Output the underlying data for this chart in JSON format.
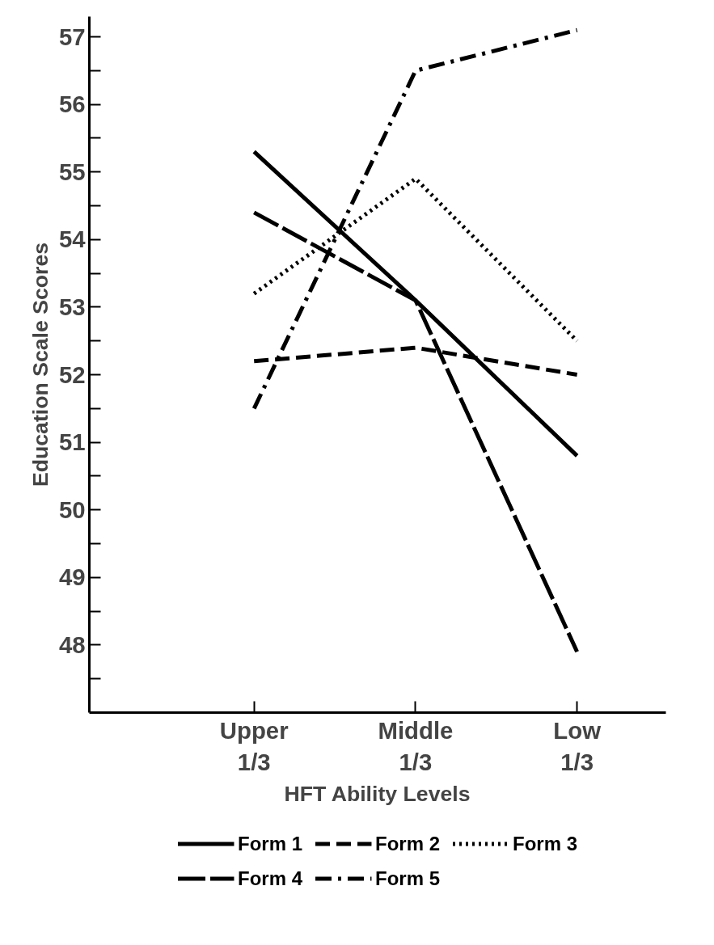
{
  "chart_data": {
    "type": "line",
    "xlabel": "HFT Ability Levels",
    "ylabel": "Education Scale Scores",
    "categories": [
      "Upper\n1/3",
      "Middle\n1/3",
      "Low\n1/3"
    ],
    "series": [
      {
        "name": "Form 1",
        "color": "#000000",
        "line_style": "solid",
        "values": [
          55.3,
          53.1,
          50.8
        ]
      },
      {
        "name": "Form 2",
        "color": "#000000",
        "line_style": "dashed",
        "values": [
          52.2,
          52.4,
          52.0
        ]
      },
      {
        "name": "Form 3",
        "color": "#000000",
        "line_style": "dotted",
        "values": [
          53.2,
          54.9,
          52.5
        ]
      },
      {
        "name": "Form 4",
        "color": "#000000",
        "line_style": "longdash",
        "values": [
          54.4,
          53.1,
          47.9
        ]
      },
      {
        "name": "Form 5",
        "color": "#000000",
        "line_style": "dashdot",
        "values": [
          51.5,
          56.5,
          57.1
        ]
      }
    ],
    "ylim": [
      47,
      57.3
    ],
    "yticks": [
      {
        "value": 47.5,
        "label": null
      },
      48,
      {
        "value": 48.5,
        "label": null
      },
      49,
      {
        "value": 49.5,
        "label": null
      },
      50,
      {
        "value": 50.5,
        "label": null
      },
      51,
      {
        "value": 51.5,
        "label": null
      },
      52,
      {
        "value": 52.5,
        "label": null
      },
      53,
      {
        "value": 53.5,
        "label": null
      },
      54,
      {
        "value": 54.5,
        "label": null
      },
      55,
      {
        "value": 55.5,
        "label": null
      },
      56,
      {
        "value": 56.5,
        "label": null
      },
      57
    ],
    "grid": false,
    "legend": "bottom",
    "marker": "none"
  }
}
